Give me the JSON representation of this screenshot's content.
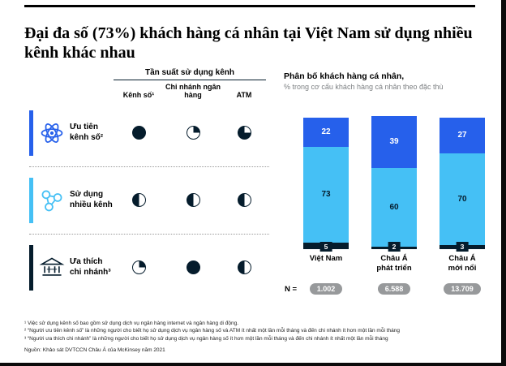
{
  "page": {
    "title": "Đại đa số (73%) khách hàng cá nhân tại Việt Nam sử dụng nhiều kênh khác nhau"
  },
  "colors": {
    "ink": "#051c2c",
    "accent_blue": "#2660eb",
    "accent_cyan": "#45c0f5",
    "pill_gray": "#97999b",
    "subtitle_gray": "#7d8083"
  },
  "frequency_table": {
    "header": "Tần suất sử dụng kênh",
    "columns": [
      "Kênh số¹",
      "Chi nhánh ngân hàng",
      "ATM"
    ],
    "rows": [
      {
        "label": "Ưu tiên kênh số²",
        "icon": "atom-icon",
        "color": "#2660eb",
        "harvey": [
          {
            "fill": 100,
            "from": 0
          },
          {
            "fill": 25,
            "from": 0
          },
          {
            "fill": 75,
            "from": 90
          }
        ]
      },
      {
        "label": "Sử dụng nhiều kênh",
        "icon": "molecule-icon",
        "color": "#45c0f5",
        "harvey": [
          {
            "fill": 50,
            "from": 180
          },
          {
            "fill": 50,
            "from": 180
          },
          {
            "fill": 50,
            "from": 180
          }
        ]
      },
      {
        "label": "Ưa thích chi nhánh³",
        "icon": "bank-icon",
        "color": "#051c2c",
        "harvey": [
          {
            "fill": 25,
            "from": 0
          },
          {
            "fill": 100,
            "from": 0
          },
          {
            "fill": 50,
            "from": 180
          }
        ]
      }
    ]
  },
  "chart": {
    "title": "Phân bố khách hàng cá nhân,",
    "subtitle": "% trong cơ cấu khách hàng cá nhân theo đặc thù",
    "n_label": "N ="
  },
  "chart_data": {
    "type": "stacked_bar",
    "categories": [
      "Việt Nam",
      "Châu Á\nphát triển",
      "Châu Á\nmới nổi"
    ],
    "series": [
      {
        "name": "Ưu tiên kênh số",
        "color": "#2660eb",
        "values": [
          22,
          39,
          27
        ]
      },
      {
        "name": "Sử dụng nhiều kênh",
        "color": "#45c0f5",
        "values": [
          73,
          60,
          70
        ]
      },
      {
        "name": "Ưa thích chi nhánh",
        "color": "#051c2c",
        "values": [
          5,
          2,
          3
        ]
      }
    ],
    "ylim": [
      0,
      100
    ],
    "value_unit": "%",
    "n_values": [
      "1.002",
      "6.588",
      "13.709"
    ]
  },
  "footnotes": [
    "¹ Việc sử dụng kênh số bao gồm sử dụng dịch vụ ngân hàng internet và ngân hàng di động.",
    "² “Người ưu tiên kênh số” là những người cho biết họ sử dụng dịch vụ ngân hàng số và ATM ít nhất một lần mỗi tháng và đến chi nhánh ít hơn một lần mỗi tháng",
    "³ “Người ưa thích chi nhánh” là những người cho biết họ sử dụng dịch vụ ngân hàng số ít hơn một lần mỗi tháng và đến chi nhánh ít nhất một lần mỗi tháng"
  ],
  "source": "Nguồn: Khảo sát DVTCCN Châu Á của McKinsey năm 2021"
}
